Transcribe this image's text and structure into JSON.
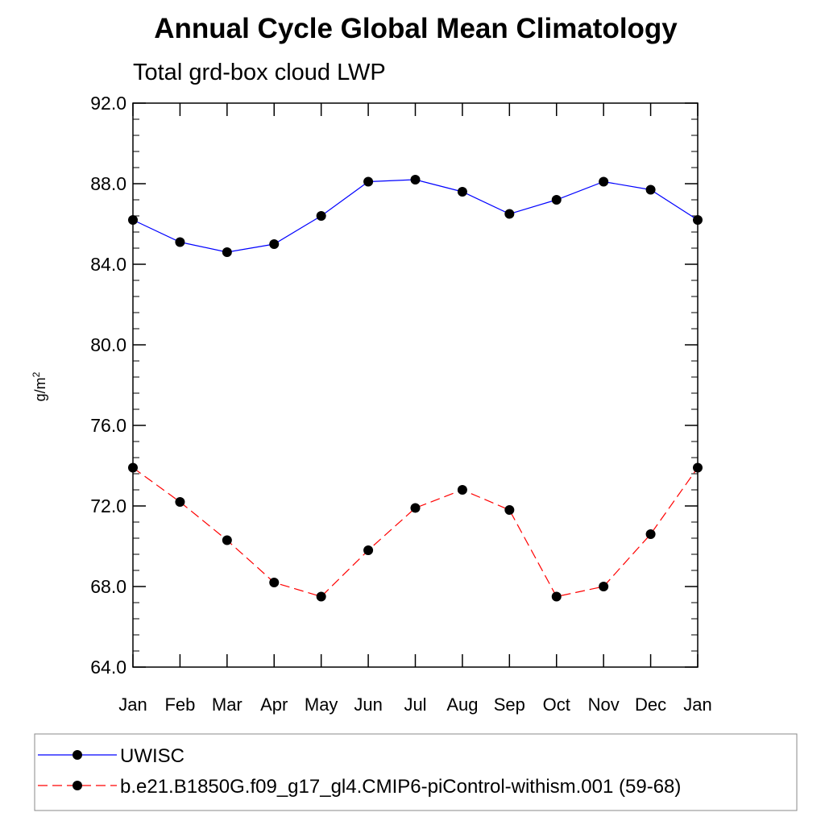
{
  "chart_data": {
    "type": "line",
    "title": "Annual Cycle Global Mean Climatology",
    "subtitle": "Total grd-box cloud LWP",
    "ylabel": "g/m",
    "ylabel_sup": "2",
    "categories": [
      "Jan",
      "Feb",
      "Mar",
      "Apr",
      "May",
      "Jun",
      "Jul",
      "Aug",
      "Sep",
      "Oct",
      "Nov",
      "Dec",
      "Jan"
    ],
    "ylim": [
      64.0,
      92.0
    ],
    "yticks": [
      "64.0",
      "68.0",
      "72.0",
      "76.0",
      "80.0",
      "84.0",
      "88.0",
      "92.0"
    ],
    "grid": false,
    "legend_position": "bottom",
    "series": [
      {
        "name": "UWISC",
        "color": "#0000ff",
        "line_style": "solid",
        "values": [
          86.2,
          85.1,
          84.6,
          85.0,
          86.4,
          88.1,
          88.2,
          87.6,
          86.5,
          87.2,
          88.1,
          87.7,
          86.2
        ]
      },
      {
        "name": "b.e21.B1850G.f09_g17_gl4.CMIP6-piControl-withism.001 (59-68)",
        "color": "#ff0000",
        "line_style": "dashed",
        "values": [
          73.9,
          72.2,
          70.3,
          68.2,
          67.5,
          69.8,
          71.9,
          72.8,
          71.8,
          67.5,
          68.0,
          70.6,
          73.9
        ]
      }
    ]
  }
}
